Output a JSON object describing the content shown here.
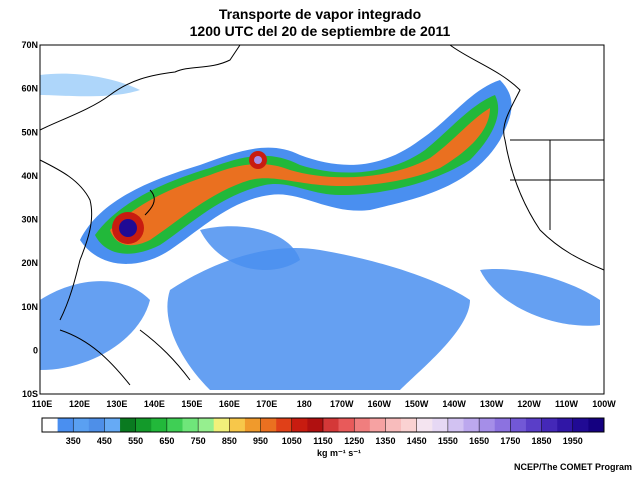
{
  "header": {
    "title_line1": "Transporte de vapor integrado",
    "title_line2": "1200 UTC del 20 de septiembre de 2011"
  },
  "map": {
    "lat_labels": [
      "70N",
      "60N",
      "50N",
      "40N",
      "30N",
      "20N",
      "10N",
      "0",
      "10S"
    ],
    "lon_labels": [
      "110E",
      "120E",
      "130E",
      "140E",
      "150E",
      "160E",
      "170E",
      "180",
      "170W",
      "160W",
      "150W",
      "140W",
      "130W",
      "120W",
      "110W",
      "100W"
    ]
  },
  "colorbar": {
    "lim": [
      250,
      2050
    ],
    "colors": [
      "#ffffff",
      "#4a8ff0",
      "#5aa0f2",
      "#4e8fe8",
      "#66aaf5",
      "#0a7a20",
      "#139a2a",
      "#22b83a",
      "#3fcf55",
      "#6fe67a",
      "#96ef8f",
      "#f2f07a",
      "#f7c74a",
      "#f09a2c",
      "#ea7020",
      "#e04018",
      "#c81c10",
      "#b01010",
      "#d43838",
      "#e85a5a",
      "#f07e7e",
      "#f6a2a2",
      "#f8bcbc",
      "#fad2d2",
      "#f4e4f0",
      "#e6d8f4",
      "#d2c2f2",
      "#bca8ee",
      "#a58ee8",
      "#8c72e0",
      "#7258d6",
      "#5a3ec8",
      "#4428b8",
      "#3016a6",
      "#200a94",
      "#140080"
    ],
    "ticks": [
      350,
      450,
      550,
      650,
      750,
      850,
      950,
      1050,
      1150,
      1250,
      1350,
      1450,
      1550,
      1650,
      1750,
      1850,
      1950
    ],
    "unit": "kg m⁻¹ s⁻¹"
  },
  "footer": {
    "credit": "NCEP/The COMET Program"
  }
}
